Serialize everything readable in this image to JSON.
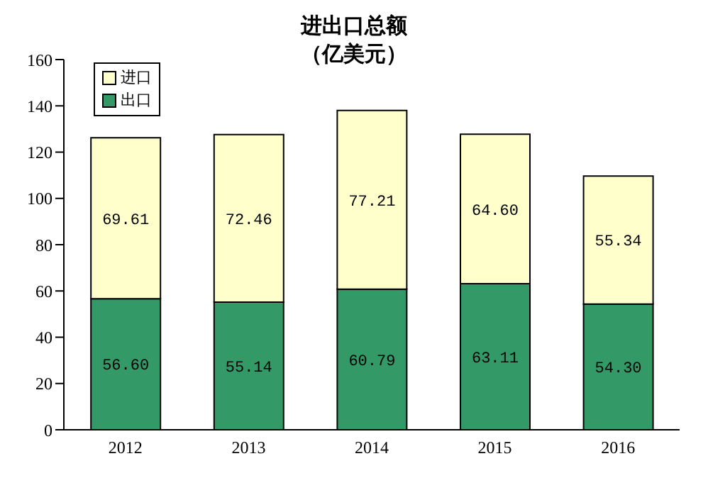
{
  "chart_data": {
    "type": "bar",
    "title": "进出口总额",
    "subtitle": "（亿美元）",
    "categories": [
      "2012",
      "2013",
      "2014",
      "2015",
      "2016"
    ],
    "stacked": true,
    "ylim": [
      0,
      160
    ],
    "yticks": [
      0,
      20,
      40,
      60,
      80,
      100,
      120,
      140,
      160
    ],
    "grid": false,
    "legend": "top left",
    "series": [
      {
        "name": "出口",
        "color": "#339966",
        "values": [
          56.6,
          55.14,
          60.79,
          63.11,
          54.3
        ],
        "value_labels": [
          "56.60",
          "55.14",
          "60.79",
          "63.11",
          "54.30"
        ]
      },
      {
        "name": "进口",
        "color": "#ffffcc",
        "values": [
          69.61,
          72.46,
          77.21,
          64.6,
          55.34
        ],
        "value_labels": [
          "69.61",
          "72.46",
          "77.21",
          "64.60",
          "55.34"
        ]
      }
    ]
  }
}
